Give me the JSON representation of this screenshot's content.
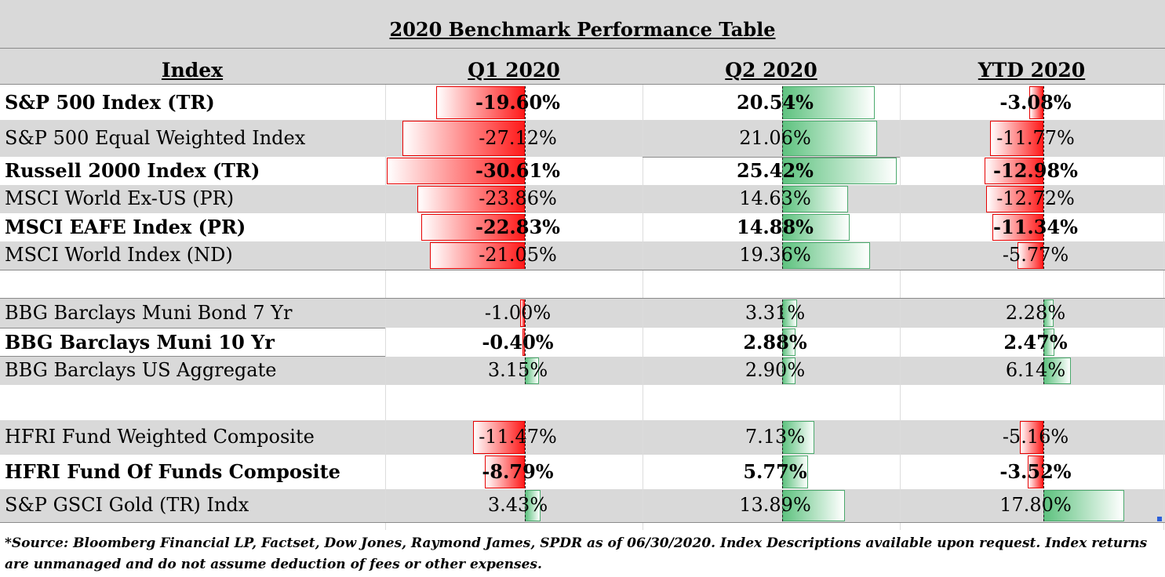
{
  "chart_data": {
    "type": "table",
    "title": "2020 Benchmark Performance Table",
    "columns": [
      "Index",
      "Q1 2020",
      "Q2 2020",
      "YTD 2020"
    ],
    "rows": [
      {
        "name": "S&P 500 Index (TR)",
        "bold": true,
        "q1": -19.6,
        "q2": 20.54,
        "ytd": -3.08,
        "q1_text": "-19.60%",
        "q2_text": "20.54%",
        "ytd_text": "-3.08%"
      },
      {
        "name": "S&P 500 Equal Weighted Index",
        "bold": false,
        "q1": -27.12,
        "q2": 21.06,
        "ytd": -11.77,
        "q1_text": "-27.12%",
        "q2_text": "21.06%",
        "ytd_text": "-11.77%"
      },
      {
        "name": "Russell 2000 Index (TR)",
        "bold": true,
        "q1": -30.61,
        "q2": 25.42,
        "ytd": -12.98,
        "q1_text": "-30.61%",
        "q2_text": "25.42%",
        "ytd_text": "-12.98%"
      },
      {
        "name": "MSCI World Ex-US (PR)",
        "bold": false,
        "q1": -23.86,
        "q2": 14.63,
        "ytd": -12.72,
        "q1_text": "-23.86%",
        "q2_text": "14.63%",
        "ytd_text": "-12.72%"
      },
      {
        "name": "MSCI EAFE Index (PR)",
        "bold": true,
        "q1": -22.83,
        "q2": 14.88,
        "ytd": -11.34,
        "q1_text": "-22.83%",
        "q2_text": "14.88%",
        "ytd_text": "-11.34%"
      },
      {
        "name": "MSCI World Index (ND)",
        "bold": false,
        "q1": -21.05,
        "q2": 19.36,
        "ytd": -5.77,
        "q1_text": "-21.05%",
        "q2_text": "19.36%",
        "ytd_text": "-5.77%"
      },
      {
        "name": "BBG Barclays Muni Bond 7 Yr",
        "bold": false,
        "q1": -1.0,
        "q2": 3.31,
        "ytd": 2.28,
        "q1_text": "-1.00%",
        "q2_text": "3.31%",
        "ytd_text": "2.28%"
      },
      {
        "name": "BBG Barclays Muni 10 Yr",
        "bold": true,
        "q1": -0.4,
        "q2": 2.88,
        "ytd": 2.47,
        "q1_text": "-0.40%",
        "q2_text": "2.88%",
        "ytd_text": "2.47%"
      },
      {
        "name": "BBG Barclays US Aggregate",
        "bold": false,
        "q1": 3.15,
        "q2": 2.9,
        "ytd": 6.14,
        "q1_text": "3.15%",
        "q2_text": "2.90%",
        "ytd_text": "6.14%"
      },
      {
        "name": "HFRI Fund Weighted Composite",
        "bold": false,
        "q1": -11.47,
        "q2": 7.13,
        "ytd": -5.16,
        "q1_text": "-11.47%",
        "q2_text": "7.13%",
        "ytd_text": "-5.16%"
      },
      {
        "name": "HFRI Fund Of Funds Composite",
        "bold": true,
        "q1": -8.79,
        "q2": 5.77,
        "ytd": -3.52,
        "q1_text": "-8.79%",
        "q2_text": "5.77%",
        "ytd_text": "-3.52%"
      },
      {
        "name": "S&P GSCI Gold (TR) Indx",
        "bold": false,
        "q1": 3.43,
        "q2": 13.89,
        "ytd": 17.8,
        "q1_text": "3.43%",
        "q2_text": "13.89%",
        "ytd_text": "17.80%"
      }
    ],
    "footnote": "*Source: Bloomberg Financial LP, Factset, Dow Jones, Raymond James, SPDR  as of 06/30/2020. Index Descriptions available upon request. Index returns are unmanaged and do not assume deduction of fees or other expenses.",
    "colors": {
      "negative": "#ff1a1a",
      "positive": "#5ec27f",
      "header_bg": "#d9d9d9",
      "row_shade": "#d9d9d9"
    }
  }
}
